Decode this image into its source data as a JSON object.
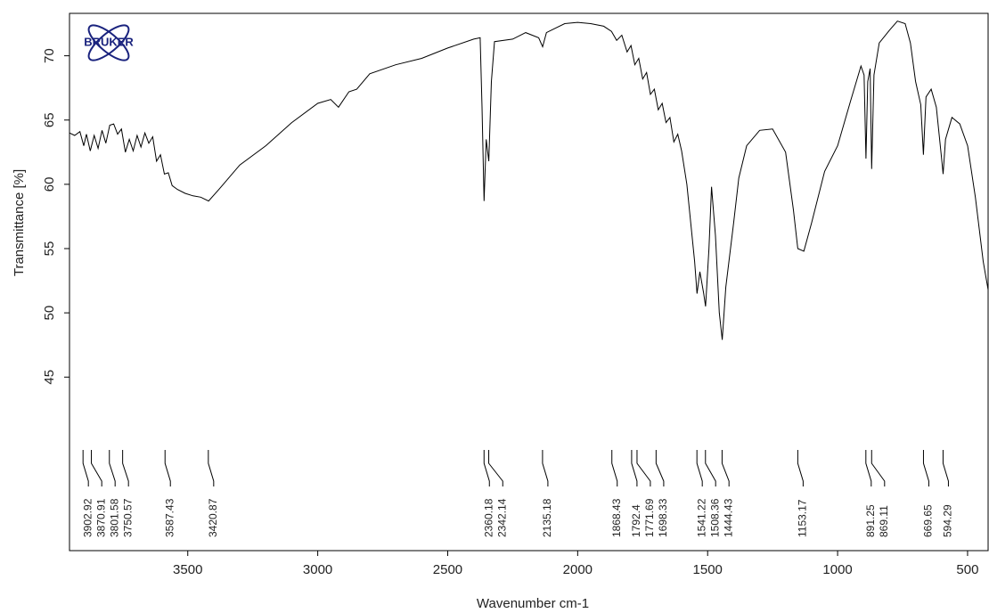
{
  "chart_data": {
    "type": "line",
    "logo_text": "BRUKER",
    "x_label": "Wavenumber cm-1",
    "y_label": "Transmittance [%]",
    "color": "#000000",
    "xlim": [
      3955,
      421
    ],
    "ylim": [
      31.5,
      73.3
    ],
    "xticks": [
      3500,
      3000,
      2500,
      2000,
      1500,
      1000,
      500
    ],
    "yticks": [
      45,
      50,
      55,
      60,
      65,
      70
    ],
    "x": [
      3955,
      3935,
      3915,
      3900,
      3890,
      3875,
      3860,
      3845,
      3830,
      3815,
      3800,
      3785,
      3770,
      3755,
      3740,
      3725,
      3710,
      3695,
      3680,
      3665,
      3650,
      3635,
      3620,
      3605,
      3590,
      3575,
      3560,
      3540,
      3510,
      3480,
      3450,
      3420,
      3380,
      3300,
      3200,
      3100,
      3000,
      2950,
      2920,
      2880,
      2850,
      2800,
      2700,
      2600,
      2500,
      2400,
      2375,
      2368,
      2360,
      2352,
      2342,
      2332,
      2320,
      2250,
      2200,
      2150,
      2135,
      2120,
      2050,
      2000,
      1950,
      1900,
      1870,
      1850,
      1830,
      1810,
      1795,
      1780,
      1765,
      1750,
      1735,
      1720,
      1705,
      1690,
      1675,
      1660,
      1645,
      1630,
      1615,
      1600,
      1580,
      1560,
      1550,
      1541,
      1530,
      1515,
      1508,
      1495,
      1485,
      1470,
      1455,
      1444,
      1430,
      1400,
      1380,
      1350,
      1300,
      1250,
      1200,
      1170,
      1153,
      1130,
      1100,
      1050,
      1000,
      950,
      910,
      898,
      891,
      884,
      875,
      869,
      860,
      840,
      800,
      770,
      740,
      720,
      700,
      680,
      670,
      660,
      640,
      620,
      600,
      594,
      585,
      560,
      530,
      500,
      470,
      440,
      421
    ],
    "values": [
      64.0,
      63.8,
      64.1,
      63.0,
      63.9,
      62.6,
      63.8,
      62.8,
      64.2,
      63.2,
      64.6,
      64.7,
      63.9,
      64.3,
      62.5,
      63.5,
      62.6,
      63.8,
      62.9,
      64.0,
      63.2,
      63.7,
      61.8,
      62.3,
      60.8,
      60.9,
      59.9,
      59.6,
      59.3,
      59.1,
      59.0,
      58.7,
      59.6,
      61.5,
      63.0,
      64.8,
      66.3,
      66.6,
      66.0,
      67.2,
      67.4,
      68.6,
      69.3,
      69.8,
      70.6,
      71.3,
      71.4,
      66.0,
      58.7,
      63.5,
      61.8,
      68.0,
      71.1,
      71.3,
      71.8,
      71.4,
      70.7,
      71.8,
      72.5,
      72.6,
      72.5,
      72.3,
      71.9,
      71.2,
      71.6,
      70.3,
      70.8,
      69.3,
      69.8,
      68.2,
      68.7,
      67.0,
      67.4,
      65.8,
      66.3,
      64.8,
      65.2,
      63.3,
      63.9,
      62.6,
      60.0,
      56.0,
      54.0,
      51.5,
      53.2,
      51.5,
      50.5,
      55.0,
      59.8,
      56.0,
      50.0,
      47.9,
      52.0,
      57.0,
      60.5,
      63.0,
      64.2,
      64.3,
      62.5,
      58.0,
      55.0,
      54.8,
      57.0,
      61.0,
      63.0,
      66.5,
      69.2,
      68.5,
      62.0,
      68.0,
      69.0,
      61.2,
      68.5,
      71.0,
      72.0,
      72.7,
      72.5,
      71.0,
      68.0,
      66.2,
      62.3,
      66.8,
      67.4,
      66.0,
      62.0,
      60.8,
      63.5,
      65.2,
      64.7,
      63.0,
      59.0,
      54.0,
      51.8
    ],
    "peaks": [
      3902.92,
      3870.91,
      3801.58,
      3750.57,
      3587.43,
      3420.87,
      2360.18,
      2342.14,
      2135.18,
      1868.43,
      1792.4,
      1771.69,
      1698.33,
      1541.22,
      1508.36,
      1444.43,
      1153.17,
      891.25,
      869.11,
      669.65,
      594.29
    ]
  }
}
